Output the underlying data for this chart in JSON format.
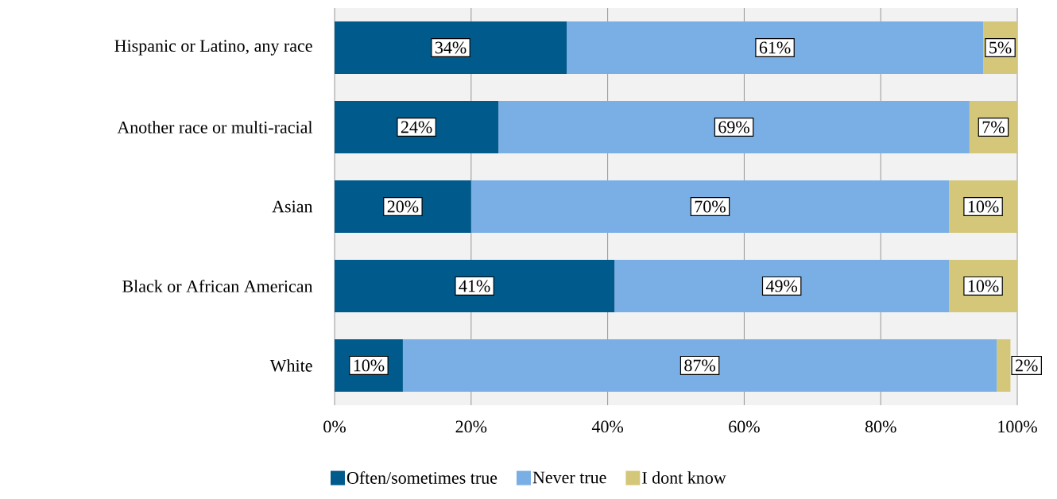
{
  "chart_data": {
    "type": "bar",
    "orientation": "horizontal",
    "stacked": true,
    "grid": "x",
    "legend": "bottom",
    "categories": [
      "Hispanic or Latino, any race",
      "Another race or multi-racial",
      "Asian",
      "Black or African American",
      "White"
    ],
    "series": [
      {
        "name": "Often/sometimes true",
        "color": "#005a8c",
        "values": [
          34,
          24,
          20,
          41,
          10
        ],
        "value_labels": [
          "34%",
          "24%",
          "20%",
          "41%",
          "10%"
        ]
      },
      {
        "name": "Never true",
        "color": "#7aafe6",
        "values": [
          61,
          69,
          70,
          49,
          87
        ],
        "value_labels": [
          "61%",
          "69%",
          "70%",
          "49%",
          "87%"
        ]
      },
      {
        "name": "I dont know",
        "color": "#d4c77a",
        "values": [
          5,
          7,
          10,
          10,
          2
        ],
        "value_labels": [
          "5%",
          "7%",
          "10%",
          "10%",
          "2%"
        ]
      }
    ],
    "xlim": [
      0,
      100
    ],
    "xticks": [
      {
        "value": 0,
        "label": "0%"
      },
      {
        "value": 20,
        "label": "20%"
      },
      {
        "value": 40,
        "label": "40%"
      },
      {
        "value": 60,
        "label": "60%"
      },
      {
        "value": 80,
        "label": "80%"
      },
      {
        "value": 100,
        "label": "100%"
      }
    ]
  }
}
